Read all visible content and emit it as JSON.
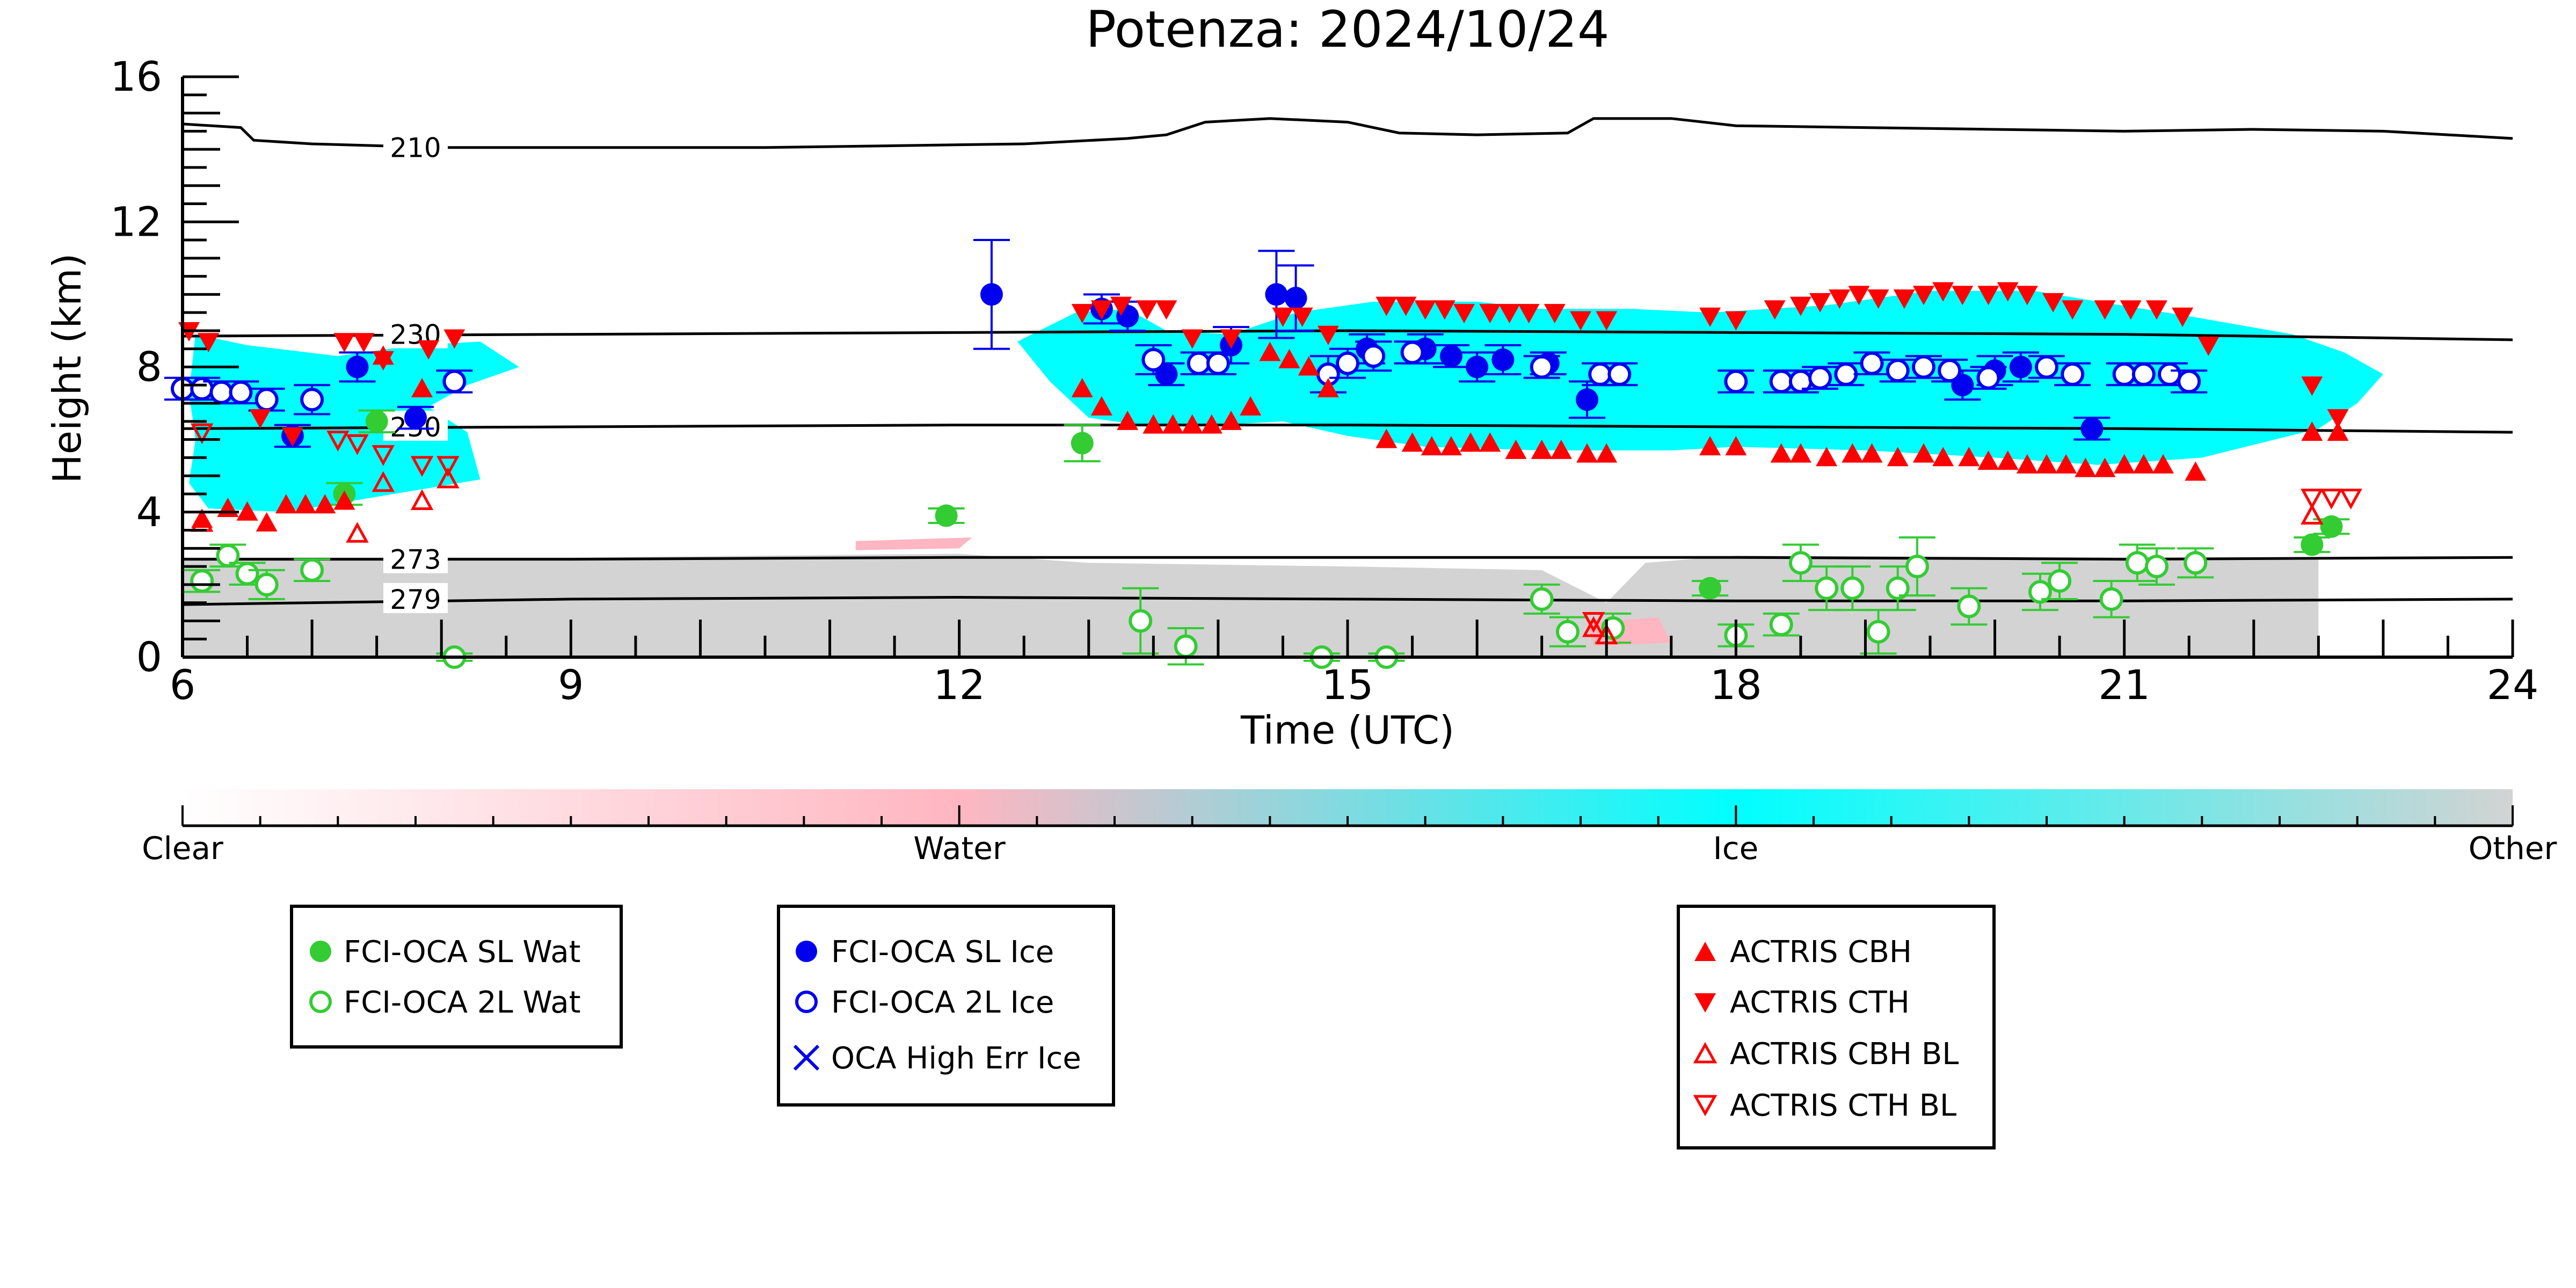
{
  "chart_data": {
    "type": "scatter",
    "title": "Potenza: 2024/10/24",
    "xlabel": "Time (UTC)",
    "ylabel": "Height (km)",
    "xlim": [
      6,
      24
    ],
    "ylim": [
      0,
      16
    ],
    "xticks": [
      6,
      9,
      12,
      15,
      18,
      21,
      24
    ],
    "yticks": [
      0,
      4,
      8,
      12,
      16
    ],
    "colorbar": {
      "labels": [
        "Clear",
        "Water",
        "Ice",
        "Other"
      ],
      "colors": {
        "clear": "#ffffff",
        "water": "#ffb6c1",
        "ice": "#00ffff",
        "other": "#d3d3d3"
      }
    },
    "contours": [
      {
        "label": "210",
        "points": [
          [
            6,
            14.7
          ],
          [
            6.45,
            14.6
          ],
          [
            6.55,
            14.25
          ],
          [
            7,
            14.15
          ],
          [
            8,
            14.05
          ],
          [
            9,
            14.05
          ],
          [
            10.5,
            14.05
          ],
          [
            11.5,
            14.1
          ],
          [
            12.5,
            14.15
          ],
          [
            13.3,
            14.3
          ],
          [
            13.6,
            14.4
          ],
          [
            13.9,
            14.75
          ],
          [
            14.4,
            14.85
          ],
          [
            15,
            14.75
          ],
          [
            15.4,
            14.45
          ],
          [
            16,
            14.4
          ],
          [
            16.7,
            14.45
          ],
          [
            16.9,
            14.85
          ],
          [
            17.5,
            14.85
          ],
          [
            18,
            14.65
          ],
          [
            19,
            14.6
          ],
          [
            20,
            14.55
          ],
          [
            21,
            14.5
          ],
          [
            22,
            14.55
          ],
          [
            23,
            14.5
          ],
          [
            24,
            14.3
          ]
        ]
      },
      {
        "label": "230",
        "points": [
          [
            6,
            8.85
          ],
          [
            9,
            8.9
          ],
          [
            12,
            8.95
          ],
          [
            15,
            9.0
          ],
          [
            18,
            8.95
          ],
          [
            21,
            8.9
          ],
          [
            24,
            8.75
          ]
        ]
      },
      {
        "label": "250",
        "points": [
          [
            6,
            6.3
          ],
          [
            9,
            6.35
          ],
          [
            12,
            6.4
          ],
          [
            15,
            6.4
          ],
          [
            18,
            6.35
          ],
          [
            21,
            6.3
          ],
          [
            24,
            6.2
          ]
        ]
      },
      {
        "label": "273",
        "points": [
          [
            6,
            2.7
          ],
          [
            9,
            2.7
          ],
          [
            12,
            2.75
          ],
          [
            15,
            2.75
          ],
          [
            18,
            2.75
          ],
          [
            21,
            2.7
          ],
          [
            24,
            2.75
          ]
        ]
      },
      {
        "label": "279",
        "points": [
          [
            6,
            1.45
          ],
          [
            9,
            1.6
          ],
          [
            12,
            1.65
          ],
          [
            15,
            1.6
          ],
          [
            18,
            1.55
          ],
          [
            21,
            1.55
          ],
          [
            24,
            1.6
          ]
        ]
      }
    ],
    "series": [
      {
        "name": "FCI-OCA SL Wat",
        "color": "#33cc33",
        "marker": "filled-circle",
        "x": [
          7.25,
          7.5,
          11.9,
          12.95,
          17.8,
          22.45,
          22.6
        ],
        "y": [
          4.5,
          6.5,
          3.9,
          5.9,
          1.9,
          3.1,
          3.6
        ],
        "err": [
          0.3,
          0.3,
          0.2,
          0.5,
          0.2,
          0.2,
          0.2
        ]
      },
      {
        "name": "FCI-OCA 2L Wat",
        "color": "#33cc33",
        "marker": "open-circle",
        "x": [
          6.15,
          6.35,
          6.5,
          6.65,
          7.0,
          8.1,
          13.4,
          13.75,
          14.8,
          15.3,
          16.5,
          16.7,
          17.05,
          18.0,
          18.35,
          18.5,
          18.7,
          18.9,
          19.1,
          19.25,
          19.4,
          19.8,
          20.35,
          20.5,
          20.9,
          21.1,
          21.25,
          21.55
        ],
        "y": [
          2.1,
          2.8,
          2.3,
          2.0,
          2.4,
          0.0,
          1.0,
          0.3,
          0.0,
          0.0,
          1.6,
          0.7,
          0.8,
          0.6,
          0.9,
          2.6,
          1.9,
          1.9,
          0.7,
          1.9,
          2.5,
          1.4,
          1.8,
          2.1,
          1.6,
          2.6,
          2.5,
          2.6
        ],
        "err": [
          0.3,
          0.3,
          0.3,
          0.4,
          0.3,
          0.1,
          0.9,
          0.5,
          0.1,
          0.1,
          0.4,
          0.4,
          0.4,
          0.3,
          0.3,
          0.5,
          0.6,
          0.6,
          0.6,
          0.6,
          0.8,
          0.5,
          0.5,
          0.5,
          0.5,
          0.5,
          0.5,
          0.4
        ]
      },
      {
        "name": "FCI-OCA SL Ice",
        "color": "#0000ee",
        "marker": "filled-circle",
        "x": [
          6.85,
          7.35,
          7.8,
          12.25,
          13.1,
          13.3,
          13.6,
          14.1,
          14.45,
          14.6,
          15.15,
          15.6,
          15.8,
          16.0,
          16.2,
          16.55,
          16.85,
          19.75,
          20.0,
          20.2,
          20.75
        ],
        "y": [
          6.1,
          8.0,
          6.6,
          10.0,
          9.6,
          9.4,
          7.8,
          8.6,
          10.0,
          9.9,
          8.5,
          8.5,
          8.3,
          8.0,
          8.2,
          8.1,
          7.1,
          7.5,
          7.9,
          8.0,
          6.3
        ],
        "err": [
          0.3,
          0.4,
          0.3,
          1.5,
          0.4,
          0.4,
          0.3,
          0.5,
          1.2,
          0.9,
          0.4,
          0.4,
          0.3,
          0.4,
          0.4,
          0.3,
          0.5,
          0.4,
          0.4,
          0.4,
          0.3
        ]
      },
      {
        "name": "FCI-OCA 2L Ice",
        "color": "#0000ee",
        "marker": "open-circle",
        "x": [
          6.0,
          6.15,
          6.3,
          6.45,
          6.65,
          7.0,
          8.1,
          13.5,
          13.85,
          14.0,
          14.85,
          15.0,
          15.2,
          15.5,
          16.5,
          16.95,
          17.1,
          18.0,
          18.35,
          18.5,
          18.65,
          18.85,
          19.05,
          19.25,
          19.45,
          19.65,
          19.95,
          20.4,
          20.6,
          21.0,
          21.15,
          21.35,
          21.5
        ],
        "y": [
          7.4,
          7.4,
          7.3,
          7.3,
          7.1,
          7.1,
          7.6,
          8.2,
          8.1,
          8.1,
          7.8,
          8.1,
          8.3,
          8.4,
          8.0,
          7.8,
          7.8,
          7.6,
          7.6,
          7.6,
          7.7,
          7.8,
          8.1,
          7.9,
          8.0,
          7.9,
          7.7,
          8.0,
          7.8,
          7.8,
          7.8,
          7.8,
          7.6
        ],
        "err": [
          0.3,
          0.3,
          0.3,
          0.3,
          0.3,
          0.4,
          0.3,
          0.4,
          0.3,
          0.3,
          0.5,
          0.4,
          0.4,
          0.3,
          0.3,
          0.3,
          0.3,
          0.3,
          0.3,
          0.3,
          0.3,
          0.3,
          0.3,
          0.3,
          0.3,
          0.3,
          0.3,
          0.3,
          0.3,
          0.3,
          0.3,
          0.3,
          0.3
        ]
      },
      {
        "name": "OCA High Err Ice",
        "color": "#0000ee",
        "marker": "cross",
        "x": [],
        "y": []
      },
      {
        "name": "ACTRIS CBH",
        "color": "#ff0000",
        "marker": "triangle-up",
        "x": [
          6.15,
          6.35,
          6.5,
          6.65,
          6.8,
          6.95,
          7.1,
          7.25,
          7.55,
          7.85,
          12.95,
          13.1,
          13.3,
          13.5,
          13.65,
          13.8,
          13.95,
          14.1,
          14.25,
          14.4,
          14.55,
          14.7,
          14.85,
          15.3,
          15.5,
          15.65,
          15.8,
          15.95,
          16.1,
          16.3,
          16.5,
          16.65,
          16.85,
          17.0,
          17.8,
          18.0,
          18.35,
          18.5,
          18.7,
          18.9,
          19.05,
          19.25,
          19.45,
          19.6,
          19.8,
          19.95,
          20.1,
          20.25,
          20.4,
          20.55,
          20.7,
          20.85,
          21.0,
          21.15,
          21.3,
          21.55,
          22.45,
          22.65
        ],
        "y": [
          3.8,
          4.1,
          4.0,
          3.7,
          4.2,
          4.2,
          4.2,
          4.3,
          8.3,
          7.4,
          7.4,
          6.9,
          6.5,
          6.4,
          6.4,
          6.4,
          6.4,
          6.5,
          6.9,
          8.4,
          8.2,
          8.0,
          7.4,
          6.0,
          5.9,
          5.8,
          5.8,
          5.9,
          5.9,
          5.7,
          5.7,
          5.7,
          5.6,
          5.6,
          5.8,
          5.8,
          5.6,
          5.6,
          5.5,
          5.6,
          5.6,
          5.5,
          5.6,
          5.5,
          5.5,
          5.4,
          5.4,
          5.3,
          5.3,
          5.3,
          5.2,
          5.2,
          5.3,
          5.3,
          5.3,
          5.1,
          6.2,
          6.2
        ]
      },
      {
        "name": "ACTRIS CTH",
        "color": "#ff0000",
        "marker": "triangle-down",
        "x": [
          6.05,
          6.2,
          6.6,
          6.85,
          7.25,
          7.4,
          7.55,
          7.9,
          8.1,
          12.95,
          13.1,
          13.25,
          13.45,
          13.6,
          13.8,
          14.1,
          14.5,
          14.65,
          14.85,
          15.3,
          15.45,
          15.6,
          15.75,
          15.9,
          16.1,
          16.25,
          16.4,
          16.6,
          16.8,
          17.0,
          17.8,
          18.0,
          18.3,
          18.5,
          18.65,
          18.8,
          18.95,
          19.1,
          19.3,
          19.45,
          19.6,
          19.75,
          19.95,
          20.1,
          20.25,
          20.45,
          20.6,
          20.85,
          21.05,
          21.25,
          21.45,
          21.65,
          22.45,
          22.65
        ],
        "y": [
          9.0,
          8.7,
          6.6,
          6.1,
          8.7,
          8.7,
          8.2,
          8.5,
          8.8,
          9.5,
          9.6,
          9.7,
          9.6,
          9.6,
          8.8,
          8.8,
          9.4,
          9.4,
          8.9,
          9.7,
          9.7,
          9.6,
          9.6,
          9.5,
          9.5,
          9.5,
          9.5,
          9.5,
          9.3,
          9.3,
          9.4,
          9.3,
          9.6,
          9.7,
          9.8,
          9.9,
          10.0,
          9.9,
          9.9,
          10.0,
          10.1,
          10.0,
          10.0,
          10.1,
          10.0,
          9.8,
          9.6,
          9.6,
          9.6,
          9.6,
          9.4,
          8.6,
          7.5,
          6.6
        ]
      },
      {
        "name": "ACTRIS CBH BL",
        "color": "#ff0000",
        "marker": "open-triangle-up",
        "x": [
          6.15,
          7.35,
          7.55,
          7.85,
          8.05,
          16.9,
          17.0,
          22.45
        ],
        "y": [
          3.7,
          3.4,
          4.8,
          4.3,
          4.9,
          0.8,
          0.6,
          3.9
        ]
      },
      {
        "name": "ACTRIS CTH BL",
        "color": "#ff0000",
        "marker": "open-triangle-down",
        "x": [
          6.15,
          7.2,
          7.35,
          7.55,
          7.85,
          8.05,
          16.9,
          22.45,
          22.6,
          22.75
        ],
        "y": [
          6.2,
          6.0,
          5.9,
          5.6,
          5.3,
          5.3,
          1.0,
          4.4,
          4.4,
          4.4
        ]
      }
    ],
    "regions": [
      {
        "class": "other",
        "polygon": [
          [
            6,
            2.75
          ],
          [
            9,
            2.75
          ],
          [
            12,
            2.85
          ],
          [
            13,
            2.6
          ],
          [
            15,
            2.5
          ],
          [
            16.5,
            2.4
          ],
          [
            17,
            1.5
          ],
          [
            17.3,
            2.6
          ],
          [
            18,
            2.8
          ],
          [
            21,
            2.75
          ],
          [
            22.5,
            2.75
          ],
          [
            22.5,
            0
          ],
          [
            6,
            0
          ]
        ]
      },
      {
        "class": "ice",
        "polygon": [
          [
            6.1,
            8.9
          ],
          [
            6.5,
            8.6
          ],
          [
            7.2,
            8.3
          ],
          [
            7.8,
            8.6
          ],
          [
            8.3,
            8.7
          ],
          [
            8.6,
            8.0
          ],
          [
            8.2,
            7.5
          ],
          [
            7.9,
            6.9
          ],
          [
            8.2,
            6.2
          ],
          [
            8.3,
            4.9
          ],
          [
            7.8,
            4.6
          ],
          [
            7.3,
            4.3
          ],
          [
            6.8,
            4.0
          ],
          [
            6.2,
            4.1
          ],
          [
            6.05,
            4.8
          ],
          [
            6.1,
            6.0
          ],
          [
            6.05,
            7.3
          ]
        ]
      },
      {
        "class": "ice",
        "polygon": [
          [
            12.45,
            8.7
          ],
          [
            12.9,
            9.5
          ],
          [
            13.3,
            9.6
          ],
          [
            13.6,
            9.0
          ],
          [
            14.1,
            8.9
          ],
          [
            14.6,
            9.5
          ],
          [
            15.2,
            9.8
          ],
          [
            16.0,
            9.8
          ],
          [
            16.5,
            9.6
          ],
          [
            17.2,
            9.6
          ],
          [
            17.8,
            9.5
          ],
          [
            18.7,
            9.7
          ],
          [
            19.5,
            10.1
          ],
          [
            20.3,
            10.1
          ],
          [
            20.8,
            9.8
          ],
          [
            21.5,
            9.4
          ],
          [
            22.3,
            8.9
          ],
          [
            22.7,
            8.4
          ],
          [
            23.0,
            7.8
          ],
          [
            22.8,
            7.0
          ],
          [
            22.5,
            6.3
          ],
          [
            21.6,
            5.5
          ],
          [
            20.8,
            5.3
          ],
          [
            20.0,
            5.5
          ],
          [
            19.0,
            5.7
          ],
          [
            18.0,
            5.8
          ],
          [
            17.5,
            5.7
          ],
          [
            16.5,
            5.7
          ],
          [
            15.6,
            5.8
          ],
          [
            15.0,
            6.1
          ],
          [
            14.5,
            6.5
          ],
          [
            14.0,
            6.4
          ],
          [
            13.4,
            6.4
          ],
          [
            13.0,
            6.6
          ],
          [
            12.7,
            7.6
          ]
        ]
      },
      {
        "class": "water",
        "polygon": [
          [
            11.2,
            3.2
          ],
          [
            12.1,
            3.3
          ],
          [
            12.0,
            3.0
          ],
          [
            11.2,
            2.95
          ]
        ]
      },
      {
        "class": "water",
        "polygon": [
          [
            16.85,
            0.95
          ],
          [
            17.4,
            1.1
          ],
          [
            17.5,
            0.4
          ],
          [
            16.9,
            0.3
          ]
        ]
      }
    ]
  }
}
